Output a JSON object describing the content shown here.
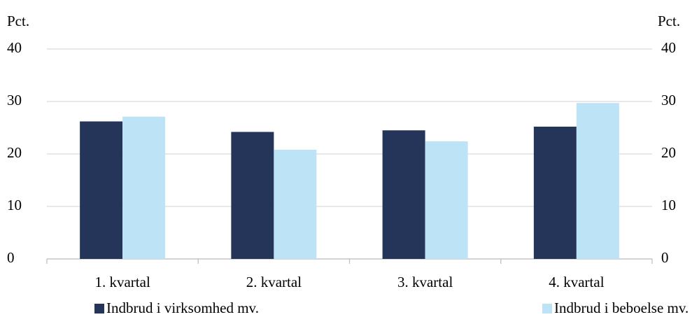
{
  "chart_data": {
    "type": "bar",
    "y_label": "Pct.",
    "y2_label": "Pct.",
    "categories": [
      "1. kvartal",
      "2. kvartal",
      "3. kvartal",
      "4. kvartal"
    ],
    "series": [
      {
        "name": "Indbrud i virksomhed mv.",
        "color": "#253559",
        "values": [
          26.2,
          24.2,
          24.5,
          25.2
        ]
      },
      {
        "name": "Indbrud i beboelse mv.",
        "color": "#bde3f6",
        "values": [
          27.1,
          20.8,
          22.4,
          29.7
        ]
      }
    ],
    "ylim": [
      0,
      40
    ],
    "yticks": [
      0,
      10,
      20,
      30,
      40
    ],
    "y2lim": [
      0,
      40
    ],
    "y2ticks": [
      0,
      10,
      20,
      30,
      40
    ],
    "grid": true
  }
}
